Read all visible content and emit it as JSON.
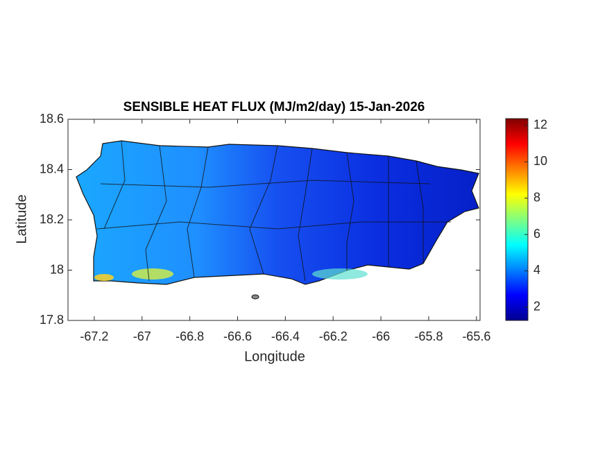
{
  "chart_data": {
    "type": "heatmap-map",
    "title": "SENSIBLE HEAT FLUX (MJ/m2/day) 15-Jan-2026",
    "xlabel": "Longitude",
    "ylabel": "Latitude",
    "xlim": [
      -67.31,
      -65.585
    ],
    "xticks": [
      -67.2,
      -67,
      -66.8,
      -66.6,
      -66.4,
      -66.2,
      -66,
      -65.8,
      -65.6
    ],
    "ylim": [
      17.8,
      18.6
    ],
    "yticks": [
      17.8,
      18,
      18.2,
      18.4,
      18.6
    ],
    "colorbar": {
      "clim": [
        1.27,
        12.38
      ],
      "ticks": [
        2,
        4,
        6,
        8,
        10,
        12
      ],
      "colormap": [
        "#00008f",
        "#0000ff",
        "#0080ff",
        "#00ffff",
        "#80ff80",
        "#ffff00",
        "#ff8000",
        "#ff0000",
        "#800000"
      ]
    }
  }
}
